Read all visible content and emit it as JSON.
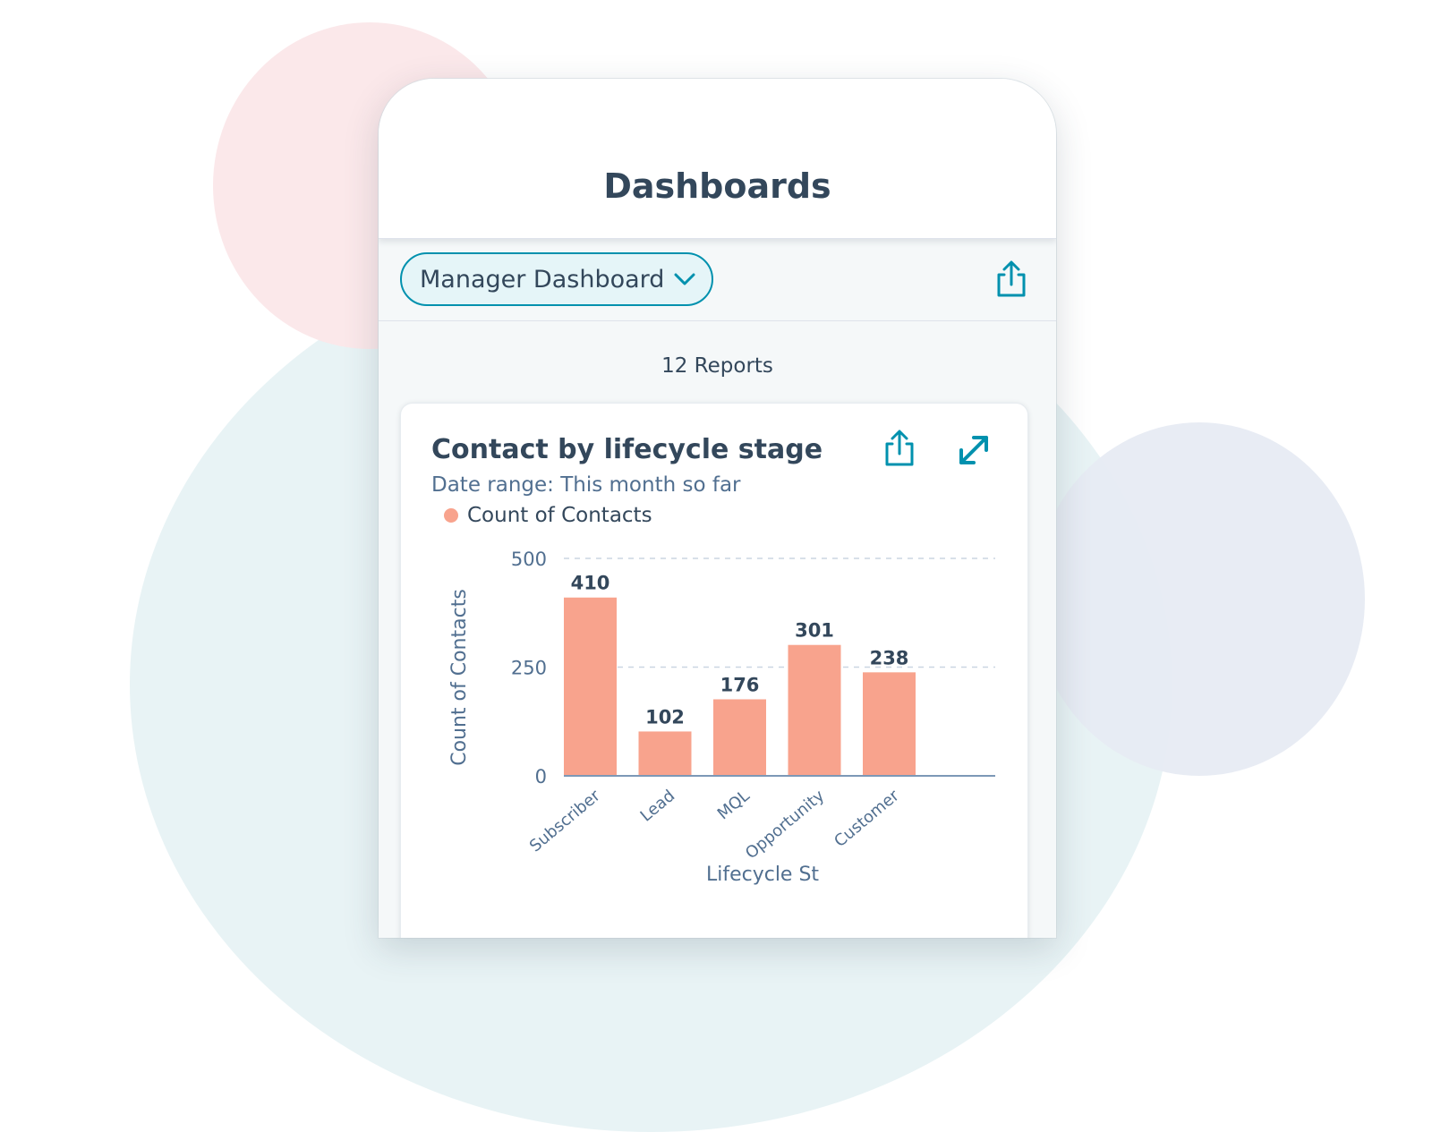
{
  "colors": {
    "accent": "#0091ae",
    "bar": "#f8a38d",
    "text": "#33475b",
    "muted": "#516f90"
  },
  "header": {
    "title": "Dashboards"
  },
  "toolbar": {
    "dashboard_select": {
      "value": "Manager Dashboard",
      "icon": "chevron-down-icon"
    },
    "share_icon": "share-icon"
  },
  "reports": {
    "count_label": "12 Reports"
  },
  "card": {
    "title": "Contact by lifecycle stage",
    "subtitle": "Date range: This month so far",
    "legend_label": "Count of Contacts",
    "share_icon": "share-icon",
    "expand_icon": "expand-icon"
  },
  "chart_data": {
    "type": "bar",
    "categories": [
      "Subscriber",
      "Lead",
      "MQL",
      "Opportunity",
      "Customer"
    ],
    "series": [
      {
        "name": "Count of Contacts",
        "values": [
          410,
          102,
          176,
          301,
          238
        ]
      }
    ],
    "ylabel": "Count of Contacts",
    "xlabel": "Lifecycle St",
    "yticks": [
      0,
      250,
      500
    ],
    "ylim": [
      0,
      500
    ],
    "grid": true,
    "legend_position": "top-left"
  }
}
